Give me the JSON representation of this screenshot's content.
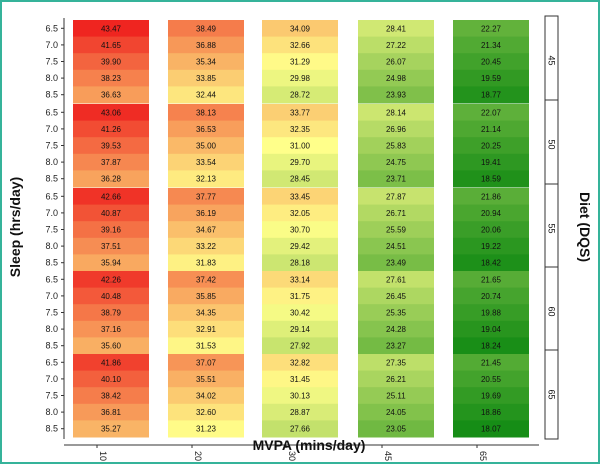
{
  "chart_data": {
    "type": "heatmap",
    "xlabel": "MVPA (mins/day)",
    "ylabel": "Sleep (hrs/day)",
    "facet_label": "Diet (DQS)",
    "x_categories": [
      "10",
      "20",
      "30",
      "45",
      "65"
    ],
    "y_categories": [
      "6.5",
      "7.0",
      "7.5",
      "8.0",
      "8.5"
    ],
    "color_scale": {
      "low": "#158c15",
      "mid": "#ffff8a",
      "high": "#ee1c1c",
      "min": 18,
      "max": 44
    },
    "facets": [
      {
        "label": "45",
        "rows": [
          [
            43.47,
            38.49,
            34.09,
            28.41,
            22.27
          ],
          [
            41.65,
            36.88,
            32.66,
            27.22,
            21.34
          ],
          [
            39.9,
            35.34,
            31.29,
            26.07,
            20.45
          ],
          [
            38.23,
            33.85,
            29.98,
            24.98,
            19.59
          ],
          [
            36.63,
            32.44,
            28.72,
            23.93,
            18.77
          ]
        ]
      },
      {
        "label": "50",
        "rows": [
          [
            43.06,
            38.13,
            33.77,
            28.14,
            22.07
          ],
          [
            41.26,
            36.53,
            32.35,
            26.96,
            21.14
          ],
          [
            39.53,
            35.0,
            31.0,
            25.83,
            20.25
          ],
          [
            37.87,
            33.54,
            29.7,
            24.75,
            19.41
          ],
          [
            36.28,
            32.13,
            28.45,
            23.71,
            18.59
          ]
        ]
      },
      {
        "label": "55",
        "rows": [
          [
            42.66,
            37.77,
            33.45,
            27.87,
            21.86
          ],
          [
            40.87,
            36.19,
            32.05,
            26.71,
            20.94
          ],
          [
            39.16,
            34.67,
            30.7,
            25.59,
            20.06
          ],
          [
            37.51,
            33.22,
            29.42,
            24.51,
            19.22
          ],
          [
            35.94,
            31.83,
            28.18,
            23.49,
            18.42
          ]
        ]
      },
      {
        "label": "60",
        "rows": [
          [
            42.26,
            37.42,
            33.14,
            27.61,
            21.65
          ],
          [
            40.48,
            35.85,
            31.75,
            26.45,
            20.74
          ],
          [
            38.79,
            34.35,
            30.42,
            25.35,
            19.88
          ],
          [
            37.16,
            32.91,
            29.14,
            24.28,
            19.04
          ],
          [
            35.6,
            31.53,
            27.92,
            23.27,
            18.24
          ]
        ]
      },
      {
        "label": "65",
        "rows": [
          [
            41.86,
            37.07,
            32.82,
            27.35,
            21.45
          ],
          [
            40.1,
            35.51,
            31.45,
            26.21,
            20.55
          ],
          [
            38.42,
            34.02,
            30.13,
            25.11,
            19.69
          ],
          [
            36.81,
            32.6,
            28.87,
            24.05,
            18.86
          ],
          [
            35.27,
            31.23,
            27.66,
            23.05,
            18.07
          ]
        ]
      }
    ]
  }
}
